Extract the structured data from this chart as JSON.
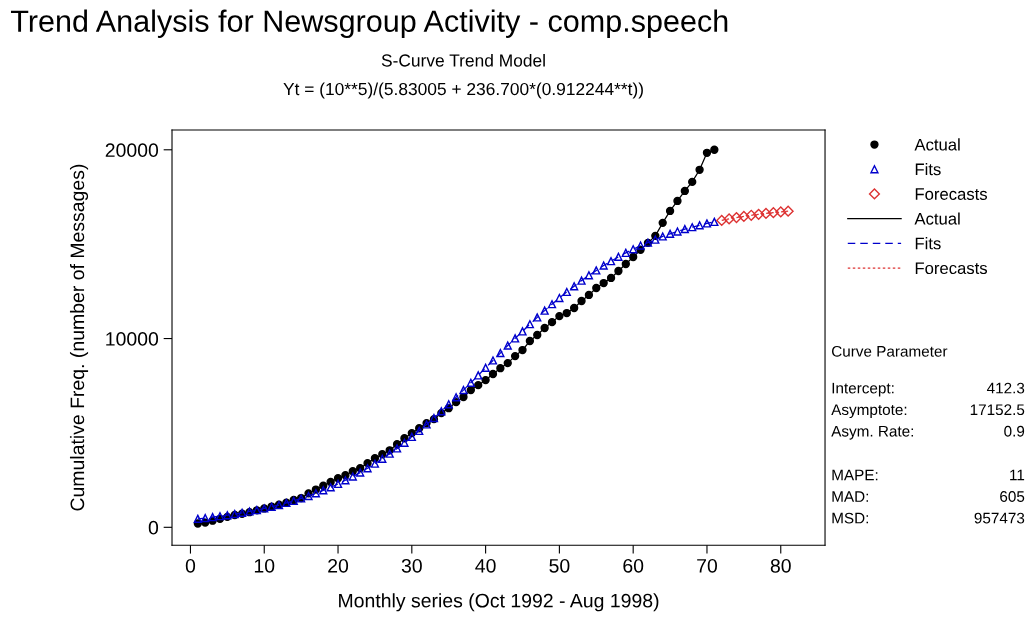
{
  "chart_data": {
    "type": "line",
    "title": "Trend Analysis for Newsgroup Activity - comp.speech",
    "subtitle": "S-Curve Trend Model\nYt = (10**5)/(5.83005 + 236.700*(0.912244**t))",
    "xlabel": "Monthly series (Oct 1992 - Aug 1998)",
    "ylabel": "Cumulative Freq. (number of Messages)",
    "xlim": [
      -2.5,
      86
    ],
    "xticks": [
      0,
      10,
      20,
      30,
      40,
      50,
      60,
      70,
      80
    ],
    "ylim": [
      -950,
      21050
    ],
    "yticks": [
      0,
      10000,
      20000
    ],
    "grid": false,
    "legend": "right",
    "series": [
      {
        "name": "Actual",
        "color": "#000000",
        "marker": "circle",
        "line_style": "solid",
        "x": [
          1,
          2,
          3,
          4,
          5,
          6,
          7,
          8,
          9,
          10,
          11,
          12,
          13,
          14,
          15,
          16,
          17,
          18,
          19,
          20,
          21,
          22,
          23,
          24,
          25,
          26,
          27,
          28,
          29,
          30,
          31,
          32,
          33,
          34,
          35,
          36,
          37,
          38,
          39,
          40,
          41,
          42,
          43,
          44,
          45,
          46,
          47,
          48,
          49,
          50,
          51,
          52,
          53,
          54,
          55,
          56,
          57,
          58,
          59,
          60,
          61,
          62,
          63,
          64,
          65,
          66,
          67,
          68,
          69,
          70,
          71
        ],
        "values": [
          200,
          250,
          350,
          450,
          550,
          650,
          720,
          800,
          900,
          1000,
          1100,
          1200,
          1300,
          1450,
          1550,
          1800,
          2000,
          2200,
          2400,
          2600,
          2760,
          2970,
          3130,
          3400,
          3660,
          3870,
          4080,
          4400,
          4720,
          4990,
          5250,
          5520,
          5730,
          6050,
          6310,
          6630,
          6900,
          7270,
          7530,
          7800,
          8120,
          8430,
          8700,
          9070,
          9390,
          9870,
          10190,
          10560,
          10870,
          11190,
          11350,
          11620,
          11990,
          12310,
          12680,
          12940,
          13210,
          13580,
          13950,
          14320,
          14700,
          15070,
          15440,
          16130,
          16760,
          17290,
          17820,
          18300,
          18940,
          19840,
          20000
        ]
      },
      {
        "name": "Fits",
        "color": "#0000cc",
        "marker": "triangle",
        "line_style": "dashed",
        "x": [
          1,
          2,
          3,
          4,
          5,
          6,
          7,
          8,
          9,
          10,
          11,
          12,
          13,
          14,
          15,
          16,
          17,
          18,
          19,
          20,
          21,
          22,
          23,
          24,
          25,
          26,
          27,
          28,
          29,
          30,
          31,
          32,
          33,
          34,
          35,
          36,
          37,
          38,
          39,
          40,
          41,
          42,
          43,
          44,
          45,
          46,
          47,
          48,
          49,
          50,
          51,
          52,
          53,
          54,
          55,
          56,
          57,
          58,
          59,
          60,
          61,
          62,
          63,
          64,
          65,
          66,
          67,
          68,
          69,
          70,
          71
        ],
        "values": [
          450,
          490,
          540,
          590,
          640,
          700,
          770,
          840,
          910,
          1000,
          1090,
          1180,
          1290,
          1400,
          1530,
          1660,
          1800,
          1960,
          2120,
          2300,
          2490,
          2690,
          2900,
          3130,
          3370,
          3630,
          3900,
          4180,
          4480,
          4790,
          5110,
          5450,
          5790,
          6150,
          6520,
          6890,
          7270,
          7660,
          8050,
          8450,
          8840,
          9230,
          9630,
          10010,
          10380,
          10760,
          11120,
          11480,
          11820,
          12150,
          12470,
          12770,
          13070,
          13350,
          13610,
          13870,
          14100,
          14330,
          14540,
          14730,
          14930,
          15080,
          15240,
          15410,
          15550,
          15670,
          15800,
          15900,
          16000,
          16100,
          16180
        ]
      },
      {
        "name": "Forecasts",
        "color": "#dd3333",
        "marker": "diamond",
        "line_style": "dotted",
        "x": [
          72,
          73,
          74,
          75,
          76,
          77,
          78,
          79,
          80,
          81
        ],
        "values": [
          16260,
          16340,
          16410,
          16470,
          16530,
          16580,
          16630,
          16670,
          16710,
          16750
        ]
      }
    ],
    "annotations": [
      "Curve Parameter",
      "Intercept:",
      "412.3",
      "Asymptote:",
      "17152.5",
      "Asym. Rate:",
      "0.9",
      "MAPE:",
      "11",
      "MAD:",
      "605",
      "MSD:",
      "957473"
    ]
  }
}
